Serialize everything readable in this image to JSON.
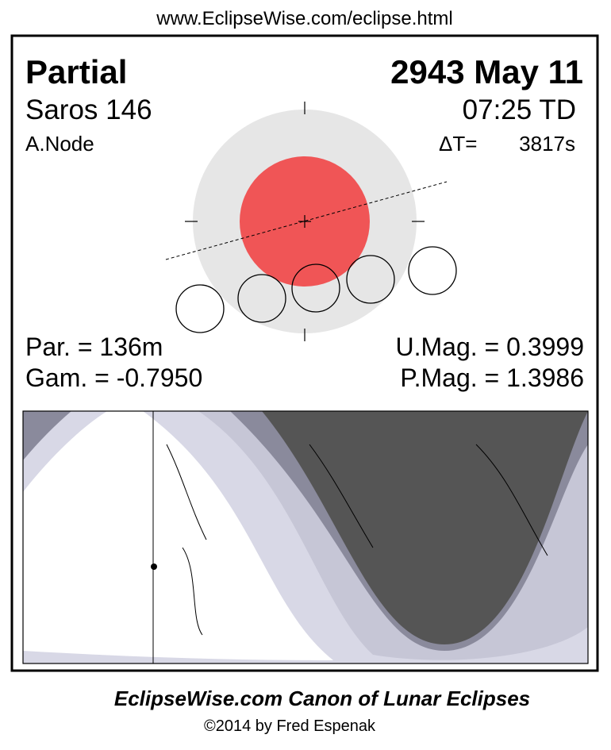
{
  "header": {
    "url": "www.EclipseWise.com/eclipse.html"
  },
  "eclipse": {
    "type": "Partial",
    "date": "2943 May 11",
    "saros": "Saros 146",
    "time": "07:25 TD",
    "node": "A.Node",
    "delta_t_label": "ΔT=",
    "delta_t": "3817s",
    "duration": "Par. = 136m",
    "gamma": "Gam. = -0.7950",
    "umag": "U.Mag. = 0.3999",
    "pmag": "P.Mag. = 1.3986"
  },
  "footer": {
    "title": "EclipseWise.com Canon of Lunar Eclipses",
    "copyright": "©2014 by Fred Espenak"
  }
}
